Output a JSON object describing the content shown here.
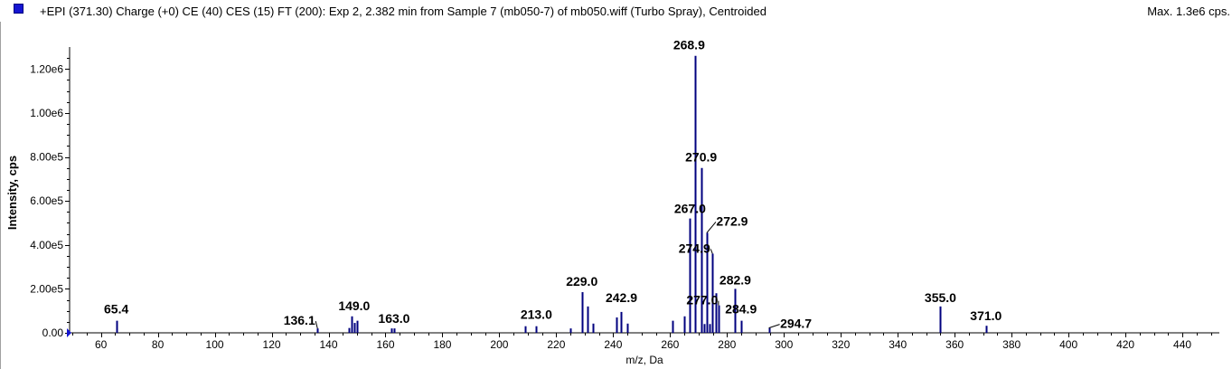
{
  "header": {
    "text": "+EPI (371.30) Charge (+0) CE (40) CES (15) FT (200): Exp 2, 2.382 min from Sample 7 (mb050-7) of mb050.wiff (Turbo Spray), Centroided",
    "max_text": "Max. 1.3e6 cps.",
    "legend_color": "#1515d2"
  },
  "chart_data": {
    "type": "bar",
    "xlabel": "m/z, Da",
    "ylabel": "Intensity, cps",
    "xlim": [
      49,
      453
    ],
    "ylim": [
      0,
      1300000
    ],
    "x_ticks": [
      "60",
      "80",
      "100",
      "120",
      "140",
      "160",
      "180",
      "200",
      "220",
      "240",
      "260",
      "280",
      "300",
      "320",
      "340",
      "360",
      "380",
      "400",
      "420",
      "440"
    ],
    "y_ticks": [
      "0.00",
      "2.00e5",
      "4.00e5",
      "6.00e5",
      "8.00e5",
      "1.00e6",
      "1.20e6"
    ],
    "bar_color": "#00007f",
    "peaks": [
      {
        "x": 65.4,
        "y": 55000,
        "label": "65.4"
      },
      {
        "x": 136.1,
        "y": 20000,
        "label": "136.1"
      },
      {
        "x": 147.1,
        "y": 22000
      },
      {
        "x": 148.0,
        "y": 75000
      },
      {
        "x": 149.0,
        "y": 45000,
        "label": "149.0"
      },
      {
        "x": 150.1,
        "y": 55000
      },
      {
        "x": 162.1,
        "y": 20000
      },
      {
        "x": 163.0,
        "y": 20000,
        "label": "163.0"
      },
      {
        "x": 209.0,
        "y": 30000
      },
      {
        "x": 213.0,
        "y": 30000,
        "label": "213.0"
      },
      {
        "x": 225.1,
        "y": 20000
      },
      {
        "x": 229.0,
        "y": 185000,
        "label": "229.0"
      },
      {
        "x": 231.0,
        "y": 120000
      },
      {
        "x": 233.0,
        "y": 42000
      },
      {
        "x": 241.0,
        "y": 70000
      },
      {
        "x": 242.9,
        "y": 95000,
        "label": "242.9"
      },
      {
        "x": 245.0,
        "y": 42000
      },
      {
        "x": 261.0,
        "y": 55000
      },
      {
        "x": 265.0,
        "y": 75000
      },
      {
        "x": 267.0,
        "y": 520000,
        "label": "267.0"
      },
      {
        "x": 268.9,
        "y": 1260000,
        "label": "268.9"
      },
      {
        "x": 270.9,
        "y": 750000,
        "label": "270.9"
      },
      {
        "x": 271.9,
        "y": 40000
      },
      {
        "x": 272.9,
        "y": 455000,
        "label": "272.9"
      },
      {
        "x": 273.9,
        "y": 40000
      },
      {
        "x": 274.9,
        "y": 360000,
        "label": "274.9"
      },
      {
        "x": 276.1,
        "y": 180000
      },
      {
        "x": 277.0,
        "y": 125000,
        "label": "277.0"
      },
      {
        "x": 282.9,
        "y": 200000,
        "label": "282.9"
      },
      {
        "x": 284.9,
        "y": 55000,
        "label": "284.9"
      },
      {
        "x": 294.7,
        "y": 22000,
        "label": "294.7"
      },
      {
        "x": 355.0,
        "y": 120000,
        "label": "355.0"
      },
      {
        "x": 371.0,
        "y": 32000,
        "label": "371.0"
      }
    ]
  }
}
